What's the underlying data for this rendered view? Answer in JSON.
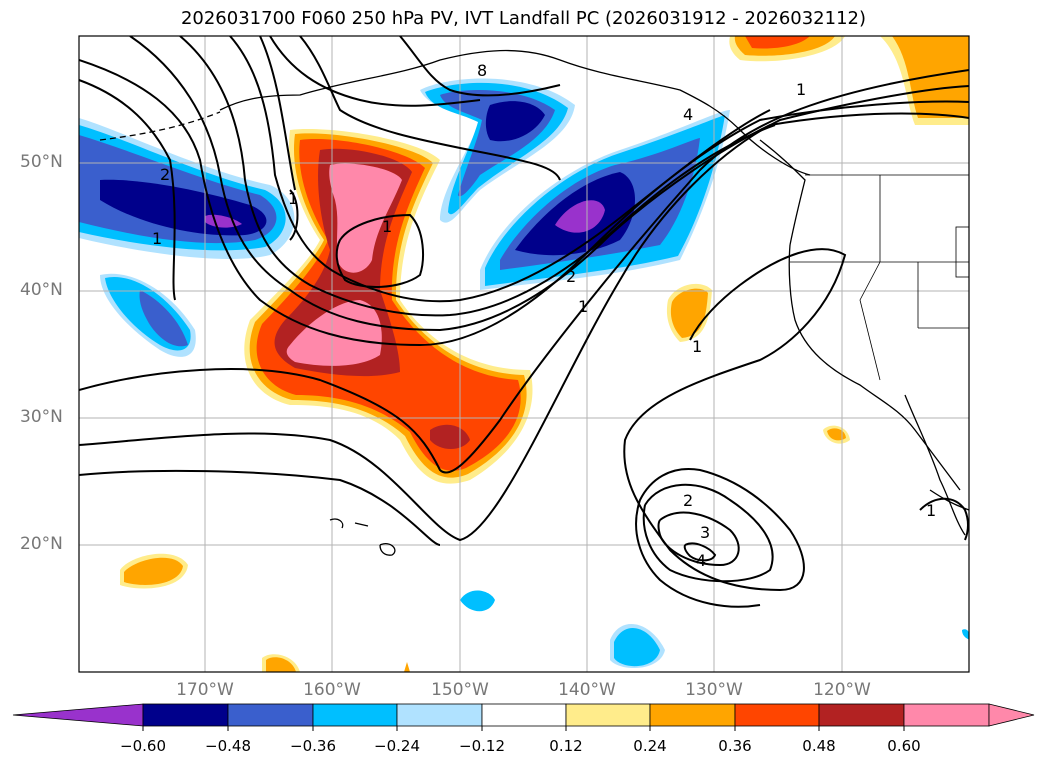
{
  "title": "2026031700 F060 250 hPa PV, IVT Landfall PC (2026031912 - 2026032112)",
  "lat_labels": [
    "50°N",
    "40°N",
    "30°N",
    "20°N"
  ],
  "lon_labels": [
    "170°W",
    "160°W",
    "150°W",
    "140°W",
    "130°W",
    "120°W"
  ],
  "colorbar": {
    "ticks": [
      "−0.60",
      "−0.48",
      "−0.36",
      "−0.24",
      "−0.12",
      "0.12",
      "0.24",
      "0.36",
      "0.48",
      "0.60"
    ],
    "colors": [
      "#9932cc",
      "#00008b",
      "#3a5fcd",
      "#00bfff",
      "#b0e2ff",
      "#ffffff",
      "#ffec8b",
      "#ffa500",
      "#ff4500",
      "#b22222",
      "#ff88aa",
      "#ff88aa"
    ]
  },
  "contour_labels": [
    "8",
    "2",
    "1",
    "1",
    "4",
    "1",
    "2",
    "1",
    "1",
    "2",
    "3",
    "4",
    "1",
    "1"
  ],
  "colors": {
    "purple": "#9932cc",
    "navy": "#00008b",
    "royal": "#3a5fcd",
    "sky": "#00bfff",
    "pale": "#b0e2ff",
    "yellow": "#ffec8b",
    "orange": "#ffa500",
    "redorange": "#ff4500",
    "firebrick": "#b22222",
    "pink": "#ff88aa"
  }
}
